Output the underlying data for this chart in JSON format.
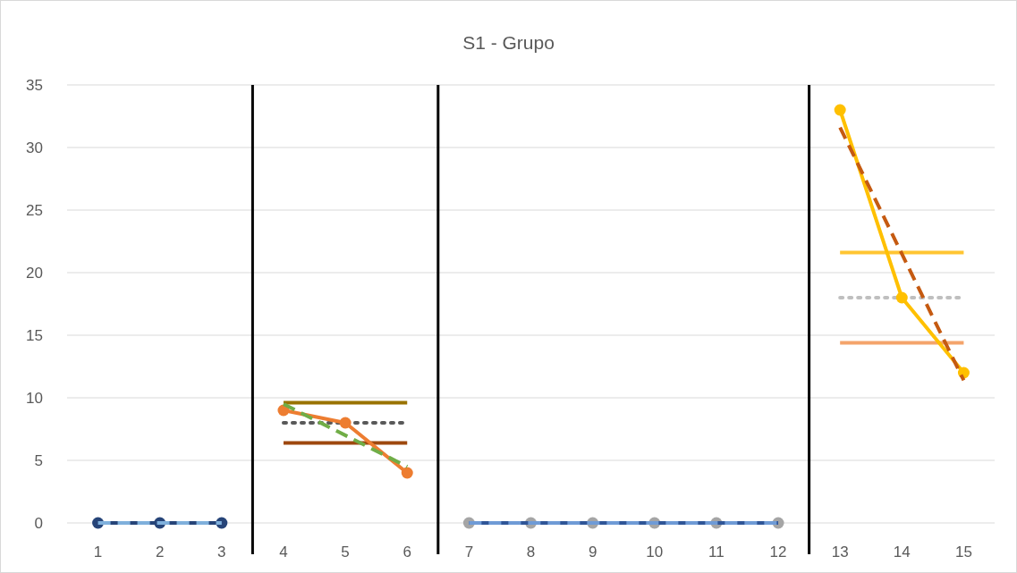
{
  "chart_data": {
    "type": "line",
    "title": "S1 - Grupo",
    "xlim": [
      0.5,
      15.5
    ],
    "xticks": [
      1,
      2,
      3,
      4,
      5,
      6,
      7,
      8,
      9,
      10,
      11,
      12,
      13,
      14,
      15
    ],
    "ylim": [
      -2.5,
      35
    ],
    "yticks": [
      0,
      5,
      10,
      15,
      20,
      25,
      30,
      35
    ],
    "grid": "y",
    "ref_lines": [
      {
        "axis": "x",
        "value": 3.5,
        "color": "#000000"
      },
      {
        "axis": "x",
        "value": 6.5,
        "color": "#000000"
      },
      {
        "axis": "x",
        "value": 12.5,
        "color": "#000000"
      }
    ],
    "series": [
      {
        "type": "line",
        "x": [
          1,
          2,
          3
        ],
        "values": [
          0,
          0,
          0
        ],
        "color": "#264478",
        "marker": "circle",
        "line_style": "solid"
      },
      {
        "type": "line",
        "x": [
          1,
          3
        ],
        "values": [
          0,
          0
        ],
        "color": "#7fb0dc",
        "marker": "none",
        "line_style": "dashed"
      },
      {
        "type": "line",
        "x": [
          4,
          6
        ],
        "values": [
          9.6,
          9.6
        ],
        "color": "#997300",
        "marker": "none",
        "line_style": "solid"
      },
      {
        "type": "line",
        "x": [
          4,
          6
        ],
        "values": [
          6.4,
          6.4
        ],
        "color": "#9e480e",
        "marker": "none",
        "line_style": "solid"
      },
      {
        "type": "line",
        "x": [
          4,
          6
        ],
        "values": [
          8,
          8
        ],
        "color": "#595959",
        "marker": "none",
        "line_style": "dotted"
      },
      {
        "type": "line",
        "x": [
          4,
          5,
          6
        ],
        "values": [
          9,
          8,
          4
        ],
        "color": "#ed7d31",
        "marker": "circle",
        "line_style": "solid"
      },
      {
        "type": "line",
        "x": [
          4,
          6
        ],
        "values": [
          9.5,
          4.5
        ],
        "color": "#70ad47",
        "marker": "none",
        "line_style": "dashed"
      },
      {
        "type": "scatter",
        "x": [
          7,
          8,
          9,
          10,
          11,
          12
        ],
        "values": [
          0,
          0,
          0,
          0,
          0,
          0
        ],
        "color": "#a5a5a5",
        "marker": "circle"
      },
      {
        "type": "line",
        "x": [
          7,
          8,
          9,
          10,
          11,
          12
        ],
        "values": [
          0,
          0,
          0,
          0,
          0,
          0
        ],
        "color": "#2f5597",
        "marker": "none",
        "line_style": "solid"
      },
      {
        "type": "line",
        "x": [
          7,
          12
        ],
        "values": [
          0,
          0
        ],
        "color": "#6f9bd6",
        "marker": "none",
        "line_style": "dashed"
      },
      {
        "type": "line",
        "x": [
          13,
          15
        ],
        "values": [
          21.6,
          21.6
        ],
        "color": "#ffc532",
        "marker": "none",
        "line_style": "solid"
      },
      {
        "type": "line",
        "x": [
          13,
          15
        ],
        "values": [
          14.4,
          14.4
        ],
        "color": "#f4a46b",
        "marker": "none",
        "line_style": "solid"
      },
      {
        "type": "line",
        "x": [
          13,
          15
        ],
        "values": [
          18,
          18
        ],
        "color": "#bfbfbf",
        "marker": "none",
        "line_style": "dotted"
      },
      {
        "type": "line",
        "x": [
          13,
          14,
          15
        ],
        "values": [
          33,
          18,
          12
        ],
        "color": "#ffc000",
        "marker": "circle",
        "line_style": "solid"
      },
      {
        "type": "line",
        "x": [
          13,
          15
        ],
        "values": [
          31.6,
          11.4
        ],
        "color": "#c55a11",
        "marker": "none",
        "line_style": "dashed"
      }
    ]
  }
}
